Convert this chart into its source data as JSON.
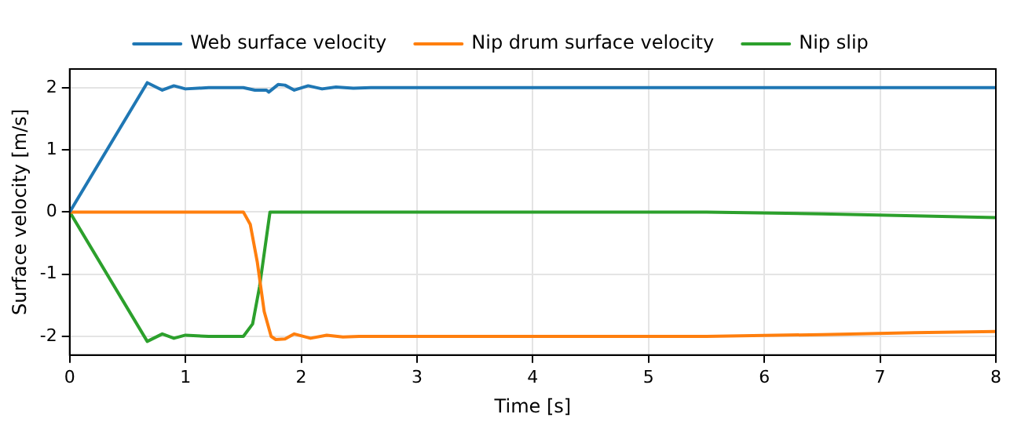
{
  "chart_data": {
    "type": "line",
    "xlabel": "Time [s]",
    "ylabel": "Surface velocity [m/s]",
    "xlim": [
      0,
      8
    ],
    "xticks": [
      0,
      1,
      2,
      3,
      4,
      5,
      6,
      7,
      8
    ],
    "ylim": [
      -2.3,
      2.3
    ],
    "yticks": [
      -2,
      -1,
      0,
      1,
      2
    ],
    "grid": true,
    "legend": "top",
    "marker": "none",
    "line_style": "solid",
    "series": [
      {
        "name": "Web surface velocity",
        "color": "#1f77b4",
        "x": [
          0,
          0.67,
          0.8,
          0.9,
          1.0,
          1.2,
          1.5,
          1.6,
          1.7,
          1.72,
          1.8,
          1.86,
          1.94,
          2.06,
          2.18,
          2.3,
          2.45,
          2.6,
          8
        ],
        "values": [
          0,
          2.08,
          1.96,
          2.03,
          1.98,
          2.0,
          2.0,
          1.96,
          1.96,
          1.93,
          2.05,
          2.04,
          1.96,
          2.03,
          1.98,
          2.01,
          1.99,
          2.0,
          2.0
        ]
      },
      {
        "name": "Nip drum surface velocity",
        "color": "#ff7f0e",
        "x": [
          0,
          1.5,
          1.56,
          1.62,
          1.68,
          1.74,
          1.78,
          1.86,
          1.94,
          2.08,
          2.22,
          2.36,
          2.5,
          5.5,
          6.5,
          7.3,
          8
        ],
        "values": [
          0,
          0,
          -0.2,
          -0.8,
          -1.6,
          -2.0,
          -2.05,
          -2.04,
          -1.96,
          -2.03,
          -1.98,
          -2.01,
          -2.0,
          -2.0,
          -1.97,
          -1.94,
          -1.92
        ]
      },
      {
        "name": "Nip slip",
        "color": "#2ca02c",
        "x": [
          0,
          0.67,
          0.8,
          0.9,
          1.0,
          1.2,
          1.5,
          1.58,
          1.64,
          1.7,
          1.73,
          5.5,
          6.5,
          7.3,
          8
        ],
        "values": [
          0,
          -2.08,
          -1.96,
          -2.03,
          -1.98,
          -2.0,
          -2.0,
          -1.8,
          -1.2,
          -0.4,
          0,
          0,
          -0.03,
          -0.06,
          -0.09
        ]
      }
    ]
  }
}
